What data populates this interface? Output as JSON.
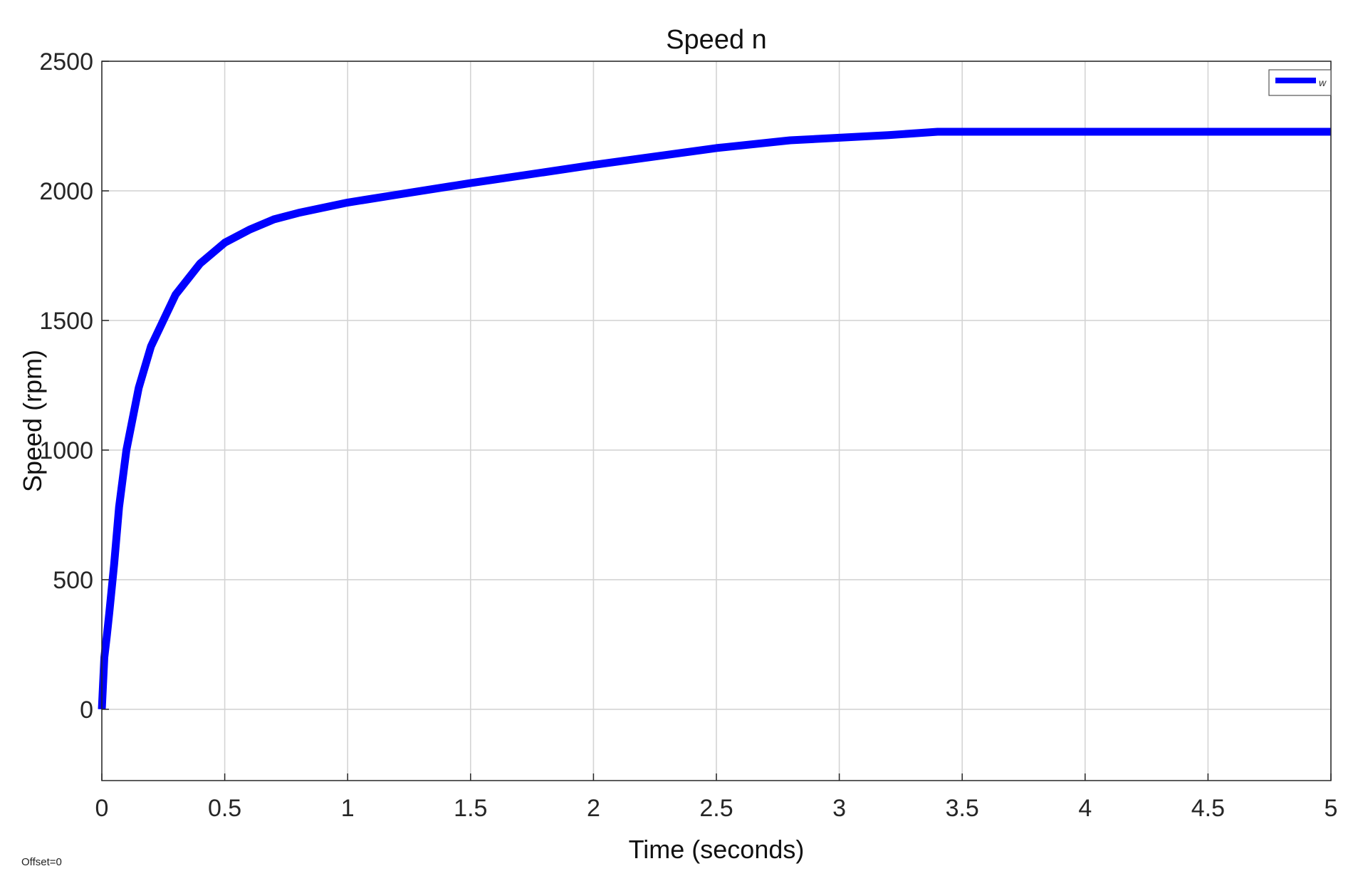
{
  "chart_data": {
    "type": "line",
    "title": "Speed n",
    "xlabel": "Time (seconds)",
    "ylabel": "Speed (rpm)",
    "xlim": [
      0,
      5
    ],
    "ylim": [
      -275,
      2500
    ],
    "xticks": [
      0,
      0.5,
      1,
      1.5,
      2,
      2.5,
      3,
      3.5,
      4,
      4.5,
      5
    ],
    "xtick_labels": [
      "0",
      "0.5",
      "1",
      "1.5",
      "2",
      "2.5",
      "3",
      "3.5",
      "4",
      "4.5",
      "5"
    ],
    "yticks": [
      0,
      500,
      1000,
      1500,
      2000,
      2500
    ],
    "ytick_labels": [
      "0",
      "500",
      "1000",
      "1500",
      "2000",
      "2500"
    ],
    "grid": true,
    "legend_position": "top-right",
    "series": [
      {
        "name": "w",
        "color": "#0000ff",
        "x": [
          0,
          0.01,
          0.02,
          0.03,
          0.05,
          0.07,
          0.1,
          0.15,
          0.2,
          0.3,
          0.4,
          0.5,
          0.6,
          0.7,
          0.8,
          0.9,
          1.0,
          1.2,
          1.5,
          2.0,
          2.5,
          2.8,
          3.0,
          3.2,
          3.4,
          3.5,
          4.0,
          4.5,
          5.0
        ],
        "y": [
          0,
          200,
          280,
          370,
          560,
          780,
          1000,
          1240,
          1400,
          1600,
          1720,
          1800,
          1850,
          1890,
          1915,
          1935,
          1955,
          1985,
          2030,
          2100,
          2165,
          2195,
          2205,
          2215,
          2228,
          2228,
          2228,
          2228,
          2228
        ]
      }
    ]
  },
  "footer": {
    "offset_label": "Offset=0"
  }
}
